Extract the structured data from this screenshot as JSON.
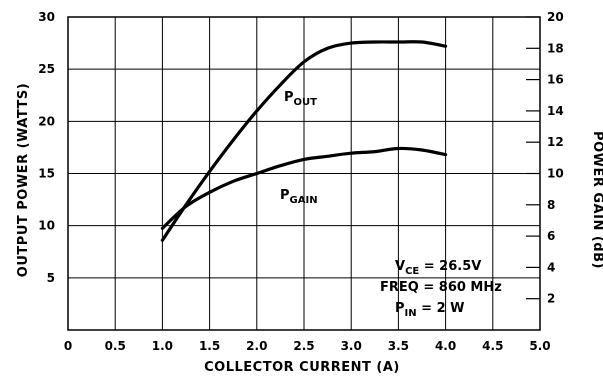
{
  "chart_data": {
    "type": "line",
    "xlabel": "COLLECTOR CURRENT (A)",
    "ylabel": "OUTPUT POWER (WATTS)",
    "y2label": "POWER GAIN (dB)",
    "xlim": [
      0,
      5.0
    ],
    "ylim": [
      0,
      30
    ],
    "y2lim": [
      0,
      20
    ],
    "grid": true,
    "x_ticks": [
      "0",
      "0.5",
      "1.0",
      "1.5",
      "2.0",
      "2.5",
      "3.0",
      "3.5",
      "4.0",
      "4.5",
      "5.0"
    ],
    "y_ticks": [
      "5",
      "10",
      "15",
      "20",
      "25",
      "30"
    ],
    "y2_ticks": [
      "2",
      "4",
      "6",
      "8",
      "10",
      "12",
      "14",
      "16",
      "18",
      "20"
    ],
    "series": [
      {
        "name": "P_OUT",
        "label_main": "P",
        "label_sub": "OUT",
        "axis": "left",
        "x": [
          1.0,
          1.25,
          1.5,
          1.75,
          2.0,
          2.25,
          2.5,
          2.75,
          3.0,
          3.25,
          3.5,
          3.75,
          4.0
        ],
        "y": [
          8.6,
          12.0,
          15.2,
          18.2,
          21.0,
          23.5,
          25.7,
          27.0,
          27.5,
          27.6,
          27.6,
          27.6,
          27.2
        ]
      },
      {
        "name": "P_GAIN",
        "label_main": "P",
        "label_sub": "GAIN",
        "axis": "right",
        "x": [
          1.0,
          1.25,
          1.5,
          1.75,
          2.0,
          2.25,
          2.5,
          2.75,
          3.0,
          3.25,
          3.5,
          3.75,
          4.0
        ],
        "y": [
          6.5,
          7.9,
          8.8,
          9.5,
          10.0,
          10.5,
          10.9,
          11.1,
          11.3,
          11.4,
          11.6,
          11.5,
          11.2
        ]
      }
    ],
    "conditions": [
      {
        "main": "V",
        "sub": "CE",
        "rest": " =  26.5V"
      },
      {
        "main": "FREQ",
        "sub": "",
        "rest": " =  860 MHz"
      },
      {
        "main": "P",
        "sub": "IN",
        "rest": " =  2 W"
      }
    ]
  }
}
